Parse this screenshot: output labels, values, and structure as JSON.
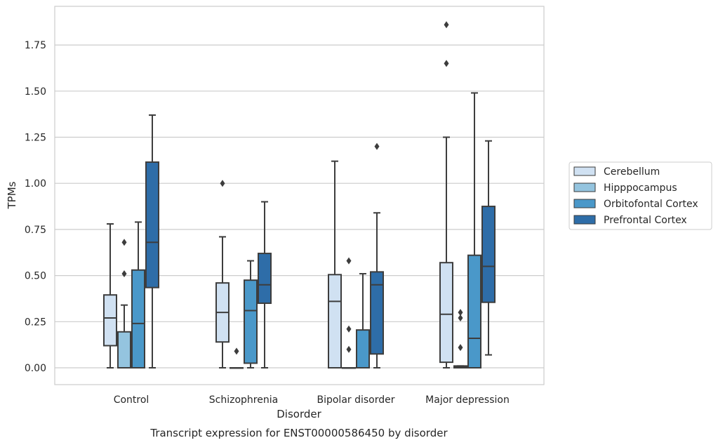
{
  "chart_data": {
    "type": "box",
    "xlabel": "Disorder",
    "ylabel": "TPMs",
    "caption": "Transcript expression for ENST00000586450 by disorder",
    "categories": [
      "Control",
      "Schizophrenia",
      "Bipolar disorder",
      "Major depression"
    ],
    "yticks": [
      "0.00",
      "0.25",
      "0.50",
      "0.75",
      "1.00",
      "1.25",
      "1.50",
      "1.75"
    ],
    "ytick_values": [
      0,
      0.25,
      0.5,
      0.75,
      1.0,
      1.25,
      1.5,
      1.75
    ],
    "ylim": [
      -0.09,
      1.96
    ],
    "grid": true,
    "legend_position": "right",
    "series": [
      {
        "name": "Cerebellum",
        "color": "#d0e1f2",
        "boxes": [
          {
            "whisker_low": 0.0,
            "q1": 0.12,
            "median": 0.27,
            "q3": 0.395,
            "whisker_high": 0.78,
            "outliers": []
          },
          {
            "whisker_low": 0.0,
            "q1": 0.14,
            "median": 0.3,
            "q3": 0.46,
            "whisker_high": 0.71,
            "outliers": [
              1.0
            ]
          },
          {
            "whisker_low": 0.0,
            "q1": 0.0,
            "median": 0.36,
            "q3": 0.505,
            "whisker_high": 1.12,
            "outliers": []
          },
          {
            "whisker_low": 0.0,
            "q1": 0.03,
            "median": 0.29,
            "q3": 0.57,
            "whisker_high": 1.25,
            "outliers": [
              1.65,
              1.86
            ]
          }
        ]
      },
      {
        "name": "Hipppocampus",
        "color": "#94c4df",
        "boxes": [
          {
            "whisker_low": 0.0,
            "q1": 0.0,
            "median": 0.0,
            "q3": 0.195,
            "whisker_high": 0.34,
            "outliers": [
              0.51,
              0.68
            ]
          },
          {
            "whisker_low": 0.0,
            "q1": 0.0,
            "median": 0.0,
            "q3": 0.0,
            "whisker_high": 0.0,
            "outliers": [
              0.09
            ]
          },
          {
            "whisker_low": 0.0,
            "q1": 0.0,
            "median": 0.0,
            "q3": 0.0,
            "whisker_high": 0.0,
            "outliers": [
              0.1,
              0.21,
              0.58
            ]
          },
          {
            "whisker_low": 0.0,
            "q1": 0.0,
            "median": 0.005,
            "q3": 0.01,
            "whisker_high": 0.01,
            "outliers": [
              0.11,
              0.27,
              0.3
            ]
          }
        ]
      },
      {
        "name": "Orbitofontal Cortex",
        "color": "#4a98c9",
        "boxes": [
          {
            "whisker_low": 0.0,
            "q1": 0.0,
            "median": 0.24,
            "q3": 0.53,
            "whisker_high": 0.79,
            "outliers": []
          },
          {
            "whisker_low": 0.0,
            "q1": 0.025,
            "median": 0.31,
            "q3": 0.475,
            "whisker_high": 0.58,
            "outliers": []
          },
          {
            "whisker_low": 0.0,
            "q1": 0.0,
            "median": 0.0,
            "q3": 0.205,
            "whisker_high": 0.51,
            "outliers": []
          },
          {
            "whisker_low": 0.0,
            "q1": 0.0,
            "median": 0.16,
            "q3": 0.61,
            "whisker_high": 1.49,
            "outliers": []
          }
        ]
      },
      {
        "name": "Prefrontal Cortex",
        "color": "#2e6da8",
        "boxes": [
          {
            "whisker_low": 0.0,
            "q1": 0.435,
            "median": 0.68,
            "q3": 1.115,
            "whisker_high": 1.37,
            "outliers": []
          },
          {
            "whisker_low": 0.0,
            "q1": 0.35,
            "median": 0.45,
            "q3": 0.62,
            "whisker_high": 0.9,
            "outliers": []
          },
          {
            "whisker_low": 0.0,
            "q1": 0.075,
            "median": 0.45,
            "q3": 0.52,
            "whisker_high": 0.84,
            "outliers": [
              1.2
            ]
          },
          {
            "whisker_low": 0.07,
            "q1": 0.355,
            "median": 0.55,
            "q3": 0.875,
            "whisker_high": 1.23,
            "outliers": []
          }
        ]
      }
    ]
  }
}
